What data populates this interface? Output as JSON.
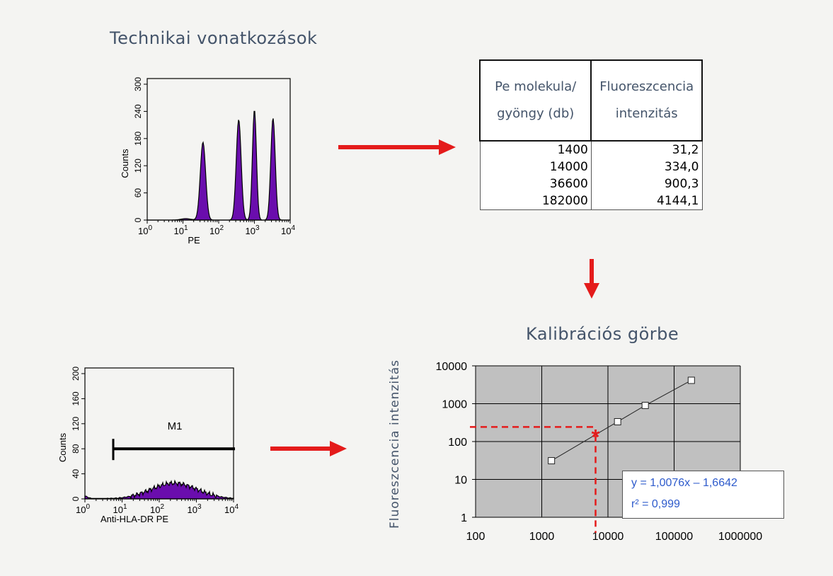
{
  "title_top": "Technikai vonatkozások",
  "title_calib": "Kalibrációs görbe",
  "hist1": {
    "ylabel": "Counts",
    "xlabel": "PE",
    "yticks": [
      "0",
      "60",
      "120",
      "180",
      "240",
      "300"
    ],
    "xticks": [
      {
        "base": "10",
        "exp": "0"
      },
      {
        "base": "10",
        "exp": "1"
      },
      {
        "base": "10",
        "exp": "2"
      },
      {
        "base": "10",
        "exp": "3"
      },
      {
        "base": "10",
        "exp": "4"
      }
    ],
    "fill_color": "#6a0dad"
  },
  "hist2": {
    "ylabel": "Counts",
    "xlabel": "Anti-HLA-DR PE",
    "yticks": [
      "0",
      "40",
      "80",
      "120",
      "160",
      "200"
    ],
    "xticks": [
      {
        "base": "10",
        "exp": "0"
      },
      {
        "base": "10",
        "exp": "1"
      },
      {
        "base": "10",
        "exp": "2"
      },
      {
        "base": "10",
        "exp": "3"
      },
      {
        "base": "10",
        "exp": "4"
      }
    ],
    "marker_label": "M1",
    "fill_color": "#6a0dad"
  },
  "table": {
    "headers": [
      "Pe molekula/ gyöngy (db)",
      "Fluoreszcencia intenzitás"
    ],
    "rows": [
      [
        "1400",
        "31,2"
      ],
      [
        "14000",
        "334,0"
      ],
      [
        "36600",
        "900,3"
      ],
      [
        "182000",
        "4144,1"
      ]
    ]
  },
  "chart_data": {
    "type": "scatter",
    "title": "Kalibrációs görbe",
    "xlabel": "",
    "ylabel": "Fluoreszcencia intenzitás",
    "xscale": "log",
    "yscale": "log",
    "xlim": [
      100,
      1000000
    ],
    "ylim": [
      1,
      10000
    ],
    "xticks": [
      "100",
      "1000",
      "10000",
      "100000",
      "1000000"
    ],
    "yticks": [
      "1",
      "10",
      "100",
      "1000",
      "10000"
    ],
    "grid": true,
    "series": [
      {
        "x": [
          1400,
          14000,
          36600,
          182000
        ],
        "y": [
          31.2,
          334.0,
          900.3,
          4144.1
        ]
      }
    ],
    "marked_point": {
      "x": 6500,
      "y": 145
    },
    "equation": "y = 1,0076x – 1,6642",
    "r2": "r² = 0,999",
    "plot_bg": "#c0c0c0",
    "marker_color": "#e41b1b"
  },
  "arrow_color": "#e41b1b"
}
